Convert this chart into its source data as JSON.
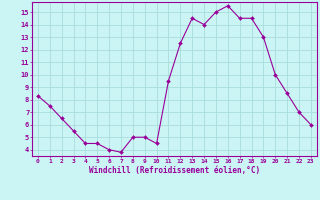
{
  "x": [
    0,
    1,
    2,
    3,
    4,
    5,
    6,
    7,
    8,
    9,
    10,
    11,
    12,
    13,
    14,
    15,
    16,
    17,
    18,
    19,
    20,
    21,
    22,
    23
  ],
  "y": [
    8.3,
    7.5,
    6.5,
    5.5,
    4.5,
    4.5,
    4.0,
    3.8,
    5.0,
    5.0,
    4.5,
    9.5,
    12.5,
    14.5,
    14.0,
    15.0,
    15.5,
    14.5,
    14.5,
    13.0,
    10.0,
    8.5,
    7.0,
    6.0
  ],
  "line_color": "#990099",
  "marker_color": "#990099",
  "bg_color": "#cbf5f5",
  "grid_color": "#aadddd",
  "xlabel": "Windchill (Refroidissement éolien,°C)",
  "xlabel_color": "#990099",
  "tick_color": "#990099",
  "spine_color": "#990099",
  "ylim_min": 3.5,
  "ylim_max": 15.8,
  "xlim_min": -0.5,
  "xlim_max": 23.5,
  "yticks": [
    4,
    5,
    6,
    7,
    8,
    9,
    10,
    11,
    12,
    13,
    14,
    15
  ],
  "xticks": [
    0,
    1,
    2,
    3,
    4,
    5,
    6,
    7,
    8,
    9,
    10,
    11,
    12,
    13,
    14,
    15,
    16,
    17,
    18,
    19,
    20,
    21,
    22,
    23
  ],
  "xtick_labels": [
    "0",
    "1",
    "2",
    "3",
    "4",
    "5",
    "6",
    "7",
    "8",
    "9",
    "10",
    "11",
    "12",
    "13",
    "14",
    "15",
    "16",
    "17",
    "18",
    "19",
    "20",
    "21",
    "22",
    "23"
  ]
}
